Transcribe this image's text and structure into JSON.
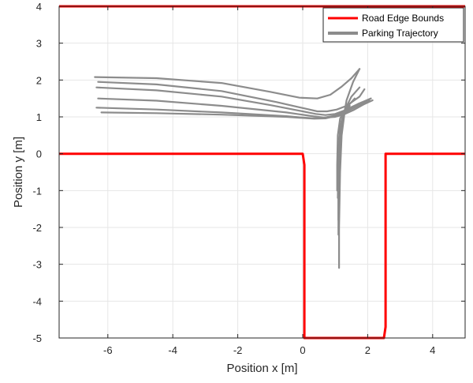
{
  "chart_data": {
    "type": "line",
    "xlabel": "Position x [m]",
    "ylabel": "Position y [m]",
    "xlim": [
      -7.5,
      5
    ],
    "ylim": [
      -5,
      4
    ],
    "xticks": [
      -6,
      -4,
      -2,
      0,
      2,
      4
    ],
    "yticks": [
      -5,
      -4,
      -3,
      -2,
      -1,
      0,
      1,
      2,
      3,
      4
    ],
    "xtick_labels": [
      "-6",
      "-4",
      "-2",
      "0",
      "2",
      "4"
    ],
    "ytick_labels": [
      "-5",
      "-4",
      "-3",
      "-2",
      "-1",
      "0",
      "1",
      "2",
      "3",
      "4"
    ],
    "grid": true,
    "legend_position": "top-right",
    "colors": {
      "road": "#ff0000",
      "trajectory": "#8c8c8c",
      "grid": "#e6e6e6",
      "axes": "#262626"
    },
    "series": [
      {
        "name": "Road Edge Bounds",
        "segments": [
          {
            "x": [
              -7.5,
              5
            ],
            "y": [
              4,
              4
            ]
          },
          {
            "x": [
              -7.5,
              0,
              0.05,
              0.05,
              2.5,
              2.55,
              2.55,
              5
            ],
            "y": [
              0,
              0,
              -0.3,
              -5,
              -5,
              -4.7,
              0,
              0
            ]
          }
        ]
      },
      {
        "name": "Parking Trajectory",
        "lines": [
          {
            "x": [
              -6.4,
              -4.5,
              -2.5,
              -1.0,
              -0.1,
              0.45,
              0.85,
              1.2,
              1.5,
              1.75
            ],
            "y": [
              2.08,
              2.05,
              1.92,
              1.68,
              1.52,
              1.5,
              1.6,
              1.82,
              2.05,
              2.3
            ]
          },
          {
            "x": [
              -6.3,
              -4.5,
              -2.5,
              -0.8,
              0.1,
              0.45,
              0.75,
              1.05,
              1.35,
              1.75,
              1.9
            ],
            "y": [
              1.95,
              1.88,
              1.7,
              1.4,
              1.22,
              1.15,
              1.15,
              1.2,
              1.3,
              1.55,
              1.75
            ]
          },
          {
            "x": [
              -6.35,
              -4.5,
              -2.5,
              -1.0,
              0.0,
              0.4,
              0.7,
              1.0,
              1.3,
              1.7,
              2.1
            ],
            "y": [
              1.8,
              1.72,
              1.55,
              1.32,
              1.15,
              1.08,
              1.05,
              1.08,
              1.18,
              1.35,
              1.5
            ]
          },
          {
            "x": [
              -6.3,
              -4.5,
              -2.5,
              -0.5,
              0.3,
              0.65,
              1.0,
              1.25,
              1.55,
              1.9,
              2.15
            ],
            "y": [
              1.5,
              1.44,
              1.3,
              1.12,
              1.02,
              0.98,
              1.0,
              1.06,
              1.18,
              1.35,
              1.45
            ]
          },
          {
            "x": [
              -6.35,
              -4.5,
              -2.5,
              -0.5,
              0.3,
              0.6,
              0.9,
              1.2,
              1.55,
              1.95
            ],
            "y": [
              1.25,
              1.2,
              1.12,
              1.02,
              0.96,
              0.97,
              1.02,
              1.12,
              1.28,
              1.4
            ]
          },
          {
            "x": [
              -6.2,
              -4.5,
              -2.5,
              -0.5,
              0.35,
              0.7,
              1.0,
              1.3,
              1.7,
              2.05
            ],
            "y": [
              1.12,
              1.1,
              1.06,
              1.0,
              0.95,
              0.96,
              1.02,
              1.12,
              1.3,
              1.45
            ]
          },
          {
            "x": [
              1.75,
              1.55,
              1.35,
              1.18,
              1.12,
              1.1,
              1.1
            ],
            "y": [
              2.3,
              1.95,
              1.45,
              0.6,
              -0.2,
              -1.0,
              -2.2
            ]
          },
          {
            "x": [
              1.75,
              1.5,
              1.3,
              1.2,
              1.15,
              1.12,
              1.12
            ],
            "y": [
              1.8,
              1.55,
              1.2,
              0.5,
              -0.5,
              -2.0,
              -3.1
            ]
          },
          {
            "x": [
              1.6,
              1.35,
              1.2,
              1.12,
              1.1,
              1.1
            ],
            "y": [
              1.5,
              1.25,
              0.9,
              0.2,
              -0.6,
              -1.8
            ]
          },
          {
            "x": [
              1.45,
              1.25,
              1.15,
              1.1,
              1.08
            ],
            "y": [
              1.3,
              1.1,
              0.7,
              0.0,
              -1.2
            ]
          },
          {
            "x": [
              1.3,
              1.15,
              1.08,
              1.06,
              1.06
            ],
            "y": [
              1.2,
              0.95,
              0.5,
              -0.3,
              -1.0
            ]
          }
        ]
      }
    ]
  }
}
